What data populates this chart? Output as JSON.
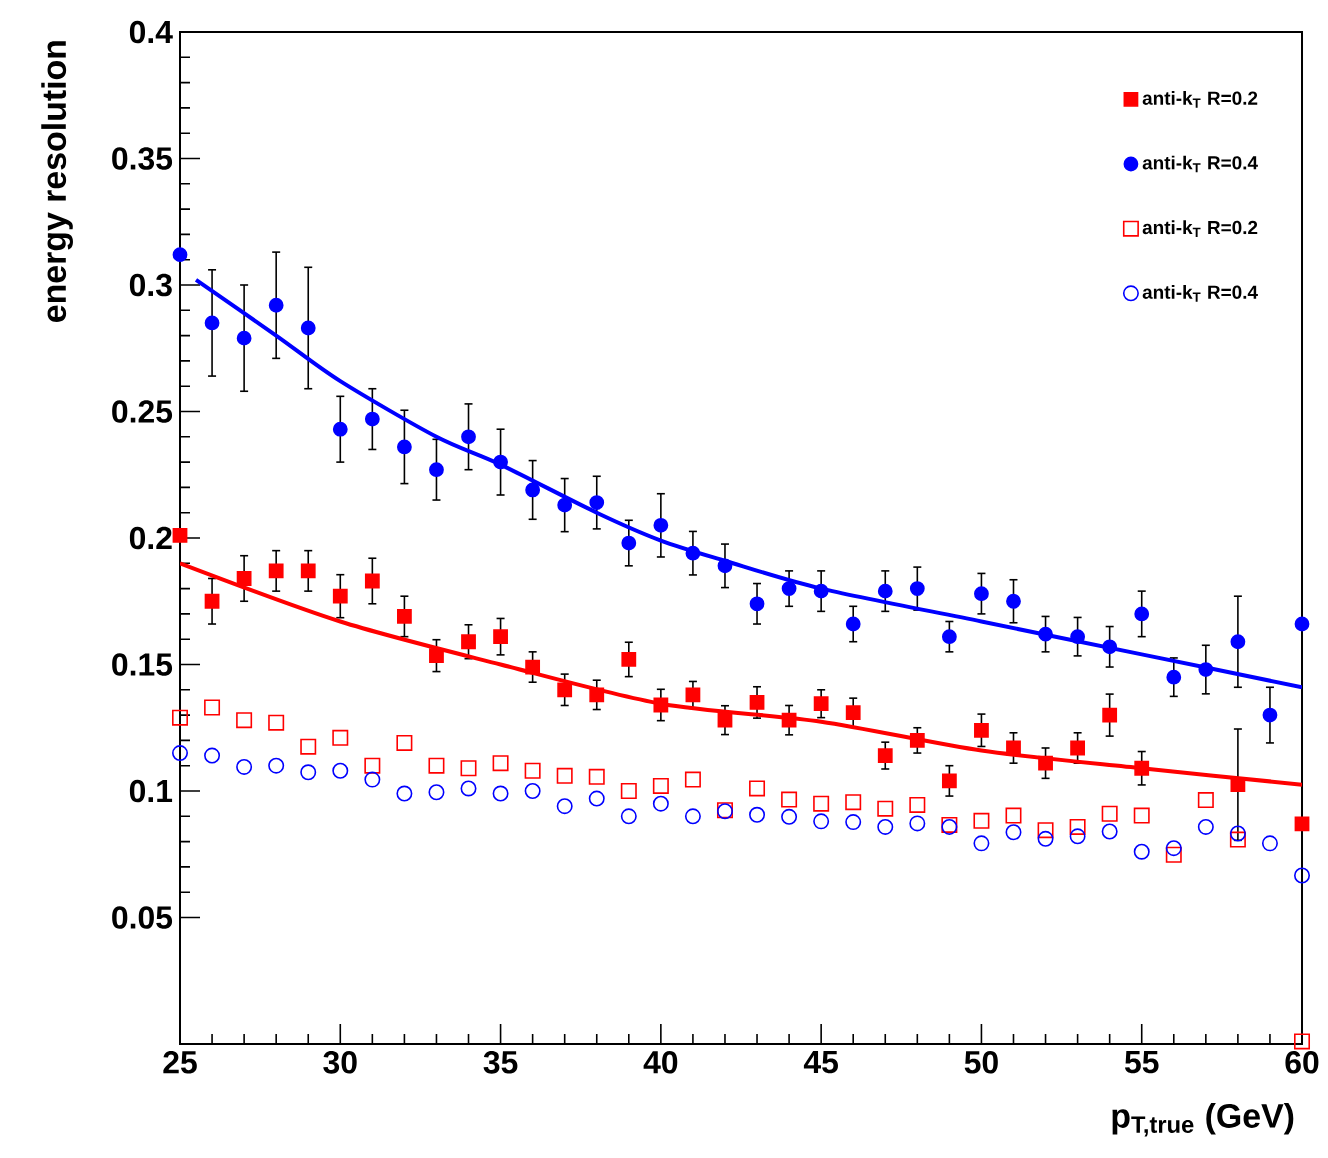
{
  "chart_data": {
    "type": "scatter",
    "xlabel": "p$_{T,true}$ (GeV)",
    "ylabel": "energy resolution",
    "x": [
      25,
      26,
      27,
      28,
      29,
      30,
      31,
      32,
      33,
      34,
      35,
      36,
      37,
      38,
      39,
      40,
      41,
      42,
      43,
      44,
      45,
      46,
      47,
      48,
      49,
      50,
      51,
      52,
      53,
      54,
      55,
      56,
      57,
      58,
      59,
      60
    ],
    "xlim": [
      25,
      60
    ],
    "ylim": [
      0,
      0.4
    ],
    "xticks": [
      25,
      30,
      35,
      40,
      45,
      50,
      55,
      60
    ],
    "yticks": [
      0.05,
      0.1,
      0.15,
      0.2,
      0.25,
      0.3,
      0.35,
      0.4
    ],
    "legend": "top right",
    "grid": false,
    "series": [
      {
        "name": "anti-k$_{T}$ R=0.2",
        "color": "#ff0000",
        "marker": "square",
        "values": [
          0.201,
          0.175,
          0.184,
          0.187,
          0.187,
          0.177,
          0.183,
          0.169,
          0.1535,
          0.159,
          0.161,
          0.149,
          0.14,
          0.138,
          0.152,
          0.134,
          0.138,
          0.128,
          0.135,
          0.128,
          0.1345,
          0.131,
          0.114,
          0.12,
          0.104,
          0.124,
          0.117,
          0.111,
          0.117,
          0.13,
          0.109,
          null,
          null,
          0.1025,
          null,
          0.087
        ],
        "errors": [
          null,
          0.009,
          0.009,
          0.008,
          0.008,
          0.0085,
          0.009,
          0.008,
          0.0063,
          0.0067,
          0.0072,
          0.006,
          0.0062,
          0.0058,
          0.0068,
          0.0062,
          0.0053,
          0.0057,
          0.0062,
          0.0058,
          0.0055,
          0.0057,
          0.0053,
          0.005,
          0.006,
          0.0064,
          0.006,
          0.006,
          0.006,
          0.0083,
          0.0066,
          null,
          null,
          0.022,
          null,
          null
        ]
      },
      {
        "name": "anti-k$_{T}$ R=0.4",
        "color": "#0000ff",
        "marker": "circle",
        "values": [
          0.312,
          0.285,
          0.279,
          0.292,
          0.283,
          0.243,
          0.247,
          0.236,
          0.227,
          0.24,
          0.23,
          0.219,
          0.213,
          0.214,
          0.198,
          0.205,
          0.194,
          0.189,
          0.174,
          0.18,
          0.179,
          0.166,
          0.179,
          0.18,
          0.161,
          0.178,
          0.175,
          0.162,
          0.161,
          0.157,
          0.17,
          0.145,
          0.148,
          0.159,
          0.13,
          0.166
        ],
        "errors": [
          null,
          0.021,
          0.021,
          0.021,
          0.024,
          0.013,
          0.012,
          0.0145,
          0.012,
          0.013,
          0.013,
          0.0116,
          0.0105,
          0.0104,
          0.009,
          0.0125,
          0.0086,
          0.0086,
          0.008,
          0.007,
          0.008,
          0.007,
          0.008,
          0.0085,
          0.006,
          0.008,
          0.0085,
          0.007,
          0.0076,
          0.008,
          0.009,
          0.0076,
          0.0096,
          0.018,
          0.011,
          null
        ]
      },
      {
        "name": "anti-k$_{T}$ R=0.2",
        "color": "#ff0000",
        "marker": "square",
        "values": [
          0.129,
          0.133,
          0.128,
          0.127,
          0.1175,
          0.121,
          0.11,
          0.119,
          0.11,
          0.109,
          0.111,
          0.108,
          0.106,
          0.1056,
          0.1,
          0.102,
          0.1045,
          0.0924,
          0.101,
          0.0966,
          0.095,
          0.0956,
          0.093,
          0.0945,
          0.0866,
          0.0882,
          0.0903,
          0.0845,
          0.0858,
          0.091,
          0.0903,
          0.0748,
          0.0964,
          0.0808,
          null,
          0.001
        ]
      },
      {
        "name": "anti-k$_{T}$ R=0.4",
        "color": "#0000ff",
        "marker": "circle",
        "values": [
          0.115,
          0.114,
          0.1095,
          0.11,
          0.1074,
          0.108,
          0.1045,
          0.099,
          0.0995,
          0.101,
          0.099,
          0.1,
          0.094,
          0.097,
          0.09,
          0.095,
          0.09,
          0.092,
          0.0906,
          0.0898,
          0.088,
          0.0877,
          0.0858,
          0.0872,
          0.0858,
          0.0793,
          0.0837,
          0.0811,
          0.0821,
          0.084,
          0.076,
          0.0774,
          0.0858,
          0.0832,
          0.0793,
          0.0666
        ]
      },
      {
        "type": "line",
        "color": "#ff0000",
        "marker": "none",
        "x": [
          25,
          30,
          35,
          40,
          45,
          50,
          55,
          60
        ],
        "values": [
          0.19,
          0.167,
          0.15,
          0.1345,
          0.1274,
          0.116,
          0.109,
          0.1025
        ]
      },
      {
        "type": "line",
        "color": "#0000ff",
        "marker": "none",
        "x": [
          25.5,
          28,
          30,
          33,
          35,
          38,
          40,
          42,
          45,
          50,
          55,
          60
        ],
        "values": [
          0.302,
          0.28,
          0.262,
          0.24,
          0.229,
          0.21,
          0.199,
          0.191,
          0.18,
          0.167,
          0.154,
          0.141
        ]
      }
    ]
  }
}
